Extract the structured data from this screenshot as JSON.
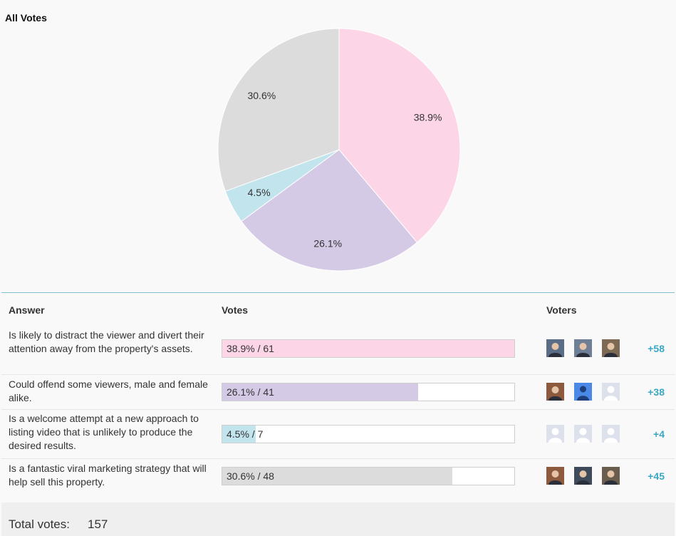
{
  "chart_data": {
    "type": "pie",
    "title": "All Votes",
    "slices": [
      {
        "label": "38.9%",
        "value": 38.9,
        "color": "#fcd5e6"
      },
      {
        "label": "26.1%",
        "value": 26.1,
        "color": "#d5cae5"
      },
      {
        "label": "4.5%",
        "value": 4.5,
        "color": "#c2e4ec"
      },
      {
        "label": "30.6%",
        "value": 30.6,
        "color": "#dcdcdc"
      }
    ]
  },
  "table": {
    "headers": {
      "answer": "Answer",
      "votes": "Votes",
      "voters": "Voters"
    },
    "rows": [
      {
        "answer": "Is likely to distract the viewer and divert their attention away from the property's assets.",
        "percent": 38.9,
        "votes": 61,
        "bar_text": "38.9% / 61",
        "color": "#fcd5e6",
        "avatars": [
          "photo-avatar",
          "photo-avatar",
          "photo-avatar"
        ],
        "more": "+58"
      },
      {
        "answer": "Could offend some viewers, male and female alike.",
        "percent": 26.1,
        "votes": 41,
        "bar_text": "26.1% / 41",
        "color": "#d5cae5",
        "avatars": [
          "photo-avatar",
          "default-blue-avatar",
          "placeholder-avatar"
        ],
        "more": "+38"
      },
      {
        "answer": "Is a welcome attempt at a new approach to listing video that is unlikely to produce the desired results.",
        "percent": 4.5,
        "votes": 7,
        "bar_text": "4.5% / 7",
        "color": "#c2e4ec",
        "avatars": [
          "placeholder-avatar",
          "placeholder-avatar",
          "placeholder-avatar"
        ],
        "more": "+4"
      },
      {
        "answer": "Is a fantastic viral marketing strategy that will help sell this property.",
        "percent": 30.6,
        "votes": 48,
        "bar_text": "30.6% / 48",
        "color": "#dcdcdc",
        "avatars": [
          "photo-avatar",
          "photo-avatar",
          "photo-avatar"
        ],
        "more": "+45"
      }
    ]
  },
  "total": {
    "label": "Total votes:",
    "value": "157"
  }
}
